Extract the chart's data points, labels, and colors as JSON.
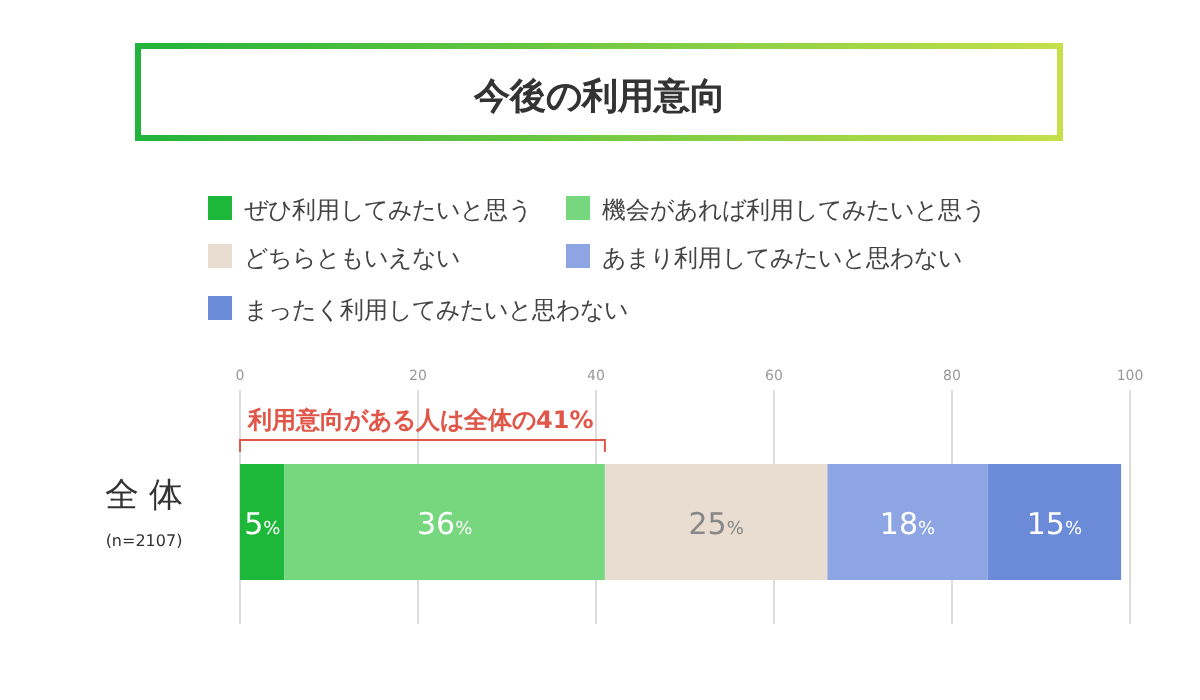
{
  "chart_data": {
    "type": "bar",
    "orientation": "horizontal",
    "stacked": true,
    "title": "今後の利用意向",
    "categories": [
      "全 体"
    ],
    "series": [
      {
        "name": "ぜひ利用してみたいと思う",
        "color": "#1db83a",
        "values": [
          5
        ],
        "value_labels": [
          "5%"
        ]
      },
      {
        "name": "機会があれば利用してみたいと思う",
        "color": "#77d77f",
        "values": [
          36
        ],
        "value_labels": [
          "36%"
        ]
      },
      {
        "name": "どちらともいえない",
        "color": "#e8ddd0",
        "values": [
          25
        ],
        "value_labels": [
          "25%"
        ]
      },
      {
        "name": "あまり利用してみたいと思わない",
        "color": "#8ea5e3",
        "values": [
          18
        ],
        "value_labels": [
          "18%"
        ]
      },
      {
        "name": "まったく利用してみたいと思わない",
        "color": "#6b8ad8",
        "values": [
          15
        ],
        "value_labels": [
          "15%"
        ]
      }
    ],
    "xlim": [
      0,
      100
    ],
    "xticks": [
      0,
      20,
      40,
      60,
      80,
      100
    ],
    "grid": "x",
    "legend": "top",
    "annotations": [
      "(n=2107)",
      "利用意向がある人は全体の41%"
    ]
  }
}
